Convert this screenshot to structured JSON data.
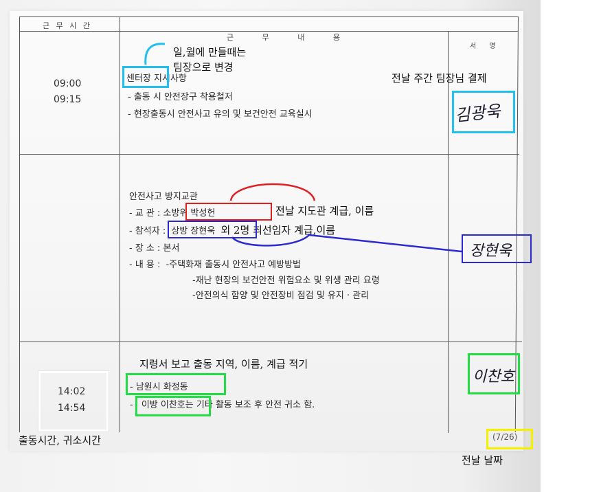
{
  "table": {
    "col_time_header": "근 무 시 간",
    "col_content_header": "근 무 내 용",
    "col_sign_header": "서 명"
  },
  "row1": {
    "time_start": "09:00",
    "time_end": "09:15",
    "title_tag": "센터장",
    "title_rest": " 지시사항",
    "items": [
      "- 출동 시 안전장구 착용철저",
      "- 현장출동시 안전사고 유의 및 보건안전 교육실시"
    ],
    "signature": "김광욱"
  },
  "row2": {
    "title": "안전사고 방지교관",
    "instructor_label": "- 교  관 :",
    "instructor_name": "소방위 박성헌",
    "attendee_label": "- 참석자 :",
    "attendee_name": "상방 장현욱",
    "attendee_rest": "외 2명 최선임자 계급,이름",
    "place_line": "- 장  소 :  본서",
    "content_label": "- 내  용 :",
    "content_items": [
      "-주택화재 출동시 안전사고 예방방법",
      "-재난 현장의 보건안전 위험요소 및 위생 관리 요령",
      "-안전의식 함양 및 안전장비 점검 및 유지 · 관리"
    ],
    "signature": "장현욱"
  },
  "row3": {
    "time_start": "14:02",
    "time_end": "14:54",
    "dispatch_area": "- 남원시 화정동",
    "person_name": "이방 이찬호",
    "person_prefix": "- ",
    "person_rest": "는 기타 활동 보조 후 안전 귀소 함.",
    "signature": "이찬호",
    "date": "(7/26)"
  },
  "annotations": {
    "leader_note_line1": "일,월에 만들때는",
    "leader_note_line2": "팀장으로 변경",
    "prev_week_sign": "전날 주간 팀장님 결제",
    "instructor_note": "전날 지도관 계급, 이름",
    "dispatch_note": "지령서 보고 출동 지역, 이름, 계급 적기",
    "time_note": "출동시간, 귀소시간",
    "date_note": "전날 날짜"
  },
  "colors": {
    "cyan": "#22c0ee",
    "red": "#e02020",
    "blue": "#2a2ad0",
    "green": "#22dd44",
    "white": "#ffffff",
    "yellow": "#f5f000"
  }
}
